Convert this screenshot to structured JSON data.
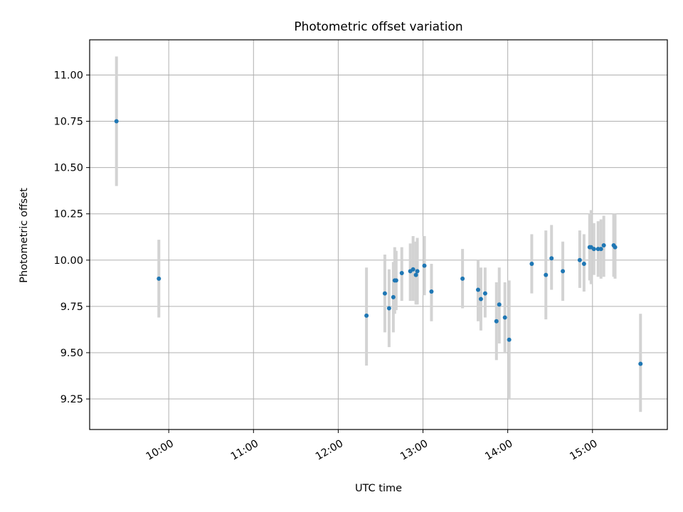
{
  "chart_data": {
    "type": "scatter",
    "title": "Photometric offset variation",
    "xlabel": "UTC time",
    "ylabel": "Photometric offset",
    "x_axis_type": "time",
    "xlim": [
      "09:04",
      "15:53"
    ],
    "ylim": [
      9.085,
      11.19
    ],
    "x_ticks": [
      "10:00",
      "11:00",
      "12:00",
      "13:00",
      "14:00",
      "15:00"
    ],
    "y_ticks": [
      9.25,
      9.5,
      9.75,
      10.0,
      10.25,
      10.5,
      10.75,
      11.0
    ],
    "y_tick_labels": [
      "9.25",
      "9.50",
      "9.75",
      "10.00",
      "10.25",
      "10.50",
      "10.75",
      "11.00"
    ],
    "grid": true,
    "legend": "none",
    "marker_color": "#1f77b4",
    "errorbar_color": "#d3d3d3",
    "points": [
      {
        "t": "09:23",
        "y": 10.75,
        "lo": 10.4,
        "hi": 11.1
      },
      {
        "t": "09:53",
        "y": 9.9,
        "lo": 9.69,
        "hi": 10.11
      },
      {
        "t": "12:20",
        "y": 9.7,
        "lo": 9.43,
        "hi": 9.96
      },
      {
        "t": "12:33",
        "y": 9.82,
        "lo": 9.61,
        "hi": 10.03
      },
      {
        "t": "12:36",
        "y": 9.74,
        "lo": 9.53,
        "hi": 9.95
      },
      {
        "t": "12:39",
        "y": 9.8,
        "lo": 9.61,
        "hi": 9.99
      },
      {
        "t": "12:40",
        "y": 9.89,
        "lo": 9.71,
        "hi": 10.07
      },
      {
        "t": "12:41",
        "y": 9.89,
        "lo": 9.73,
        "hi": 10.05
      },
      {
        "t": "12:45",
        "y": 9.93,
        "lo": 9.78,
        "hi": 10.07
      },
      {
        "t": "12:51",
        "y": 9.94,
        "lo": 9.78,
        "hi": 10.09
      },
      {
        "t": "12:53",
        "y": 9.95,
        "lo": 9.78,
        "hi": 10.13
      },
      {
        "t": "12:55",
        "y": 9.92,
        "lo": 9.76,
        "hi": 10.1
      },
      {
        "t": "12:56",
        "y": 9.94,
        "lo": 9.76,
        "hi": 10.12
      },
      {
        "t": "13:01",
        "y": 9.97,
        "lo": 9.81,
        "hi": 10.13
      },
      {
        "t": "13:06",
        "y": 9.83,
        "lo": 9.67,
        "hi": 9.98
      },
      {
        "t": "13:28",
        "y": 9.9,
        "lo": 9.74,
        "hi": 10.06
      },
      {
        "t": "13:39",
        "y": 9.84,
        "lo": 9.67,
        "hi": 10.0
      },
      {
        "t": "13:41",
        "y": 9.79,
        "lo": 9.62,
        "hi": 9.96
      },
      {
        "t": "13:44",
        "y": 9.82,
        "lo": 9.69,
        "hi": 9.96
      },
      {
        "t": "13:52",
        "y": 9.67,
        "lo": 9.46,
        "hi": 9.88
      },
      {
        "t": "13:54",
        "y": 9.76,
        "lo": 9.55,
        "hi": 9.96
      },
      {
        "t": "13:58",
        "y": 9.69,
        "lo": 9.5,
        "hi": 9.88
      },
      {
        "t": "14:01",
        "y": 9.57,
        "lo": 9.25,
        "hi": 9.89
      },
      {
        "t": "14:17",
        "y": 9.98,
        "lo": 9.82,
        "hi": 10.14
      },
      {
        "t": "14:27",
        "y": 9.92,
        "lo": 9.68,
        "hi": 10.16
      },
      {
        "t": "14:31",
        "y": 10.01,
        "lo": 9.84,
        "hi": 10.19
      },
      {
        "t": "14:39",
        "y": 9.94,
        "lo": 9.78,
        "hi": 10.1
      },
      {
        "t": "14:51",
        "y": 10.0,
        "lo": 9.85,
        "hi": 10.16
      },
      {
        "t": "14:54",
        "y": 9.98,
        "lo": 9.83,
        "hi": 10.14
      },
      {
        "t": "14:58",
        "y": 10.07,
        "lo": 9.89,
        "hi": 10.25
      },
      {
        "t": "14:59",
        "y": 10.07,
        "lo": 9.87,
        "hi": 10.27
      },
      {
        "t": "15:01",
        "y": 10.06,
        "lo": 9.92,
        "hi": 10.2
      },
      {
        "t": "15:04",
        "y": 10.06,
        "lo": 9.91,
        "hi": 10.21
      },
      {
        "t": "15:06",
        "y": 10.06,
        "lo": 9.9,
        "hi": 10.22
      },
      {
        "t": "15:08",
        "y": 10.08,
        "lo": 9.91,
        "hi": 10.24
      },
      {
        "t": "15:15",
        "y": 10.08,
        "lo": 9.91,
        "hi": 10.25
      },
      {
        "t": "15:16",
        "y": 10.07,
        "lo": 9.9,
        "hi": 10.25
      },
      {
        "t": "15:34",
        "y": 9.44,
        "lo": 9.18,
        "hi": 9.71
      }
    ]
  }
}
